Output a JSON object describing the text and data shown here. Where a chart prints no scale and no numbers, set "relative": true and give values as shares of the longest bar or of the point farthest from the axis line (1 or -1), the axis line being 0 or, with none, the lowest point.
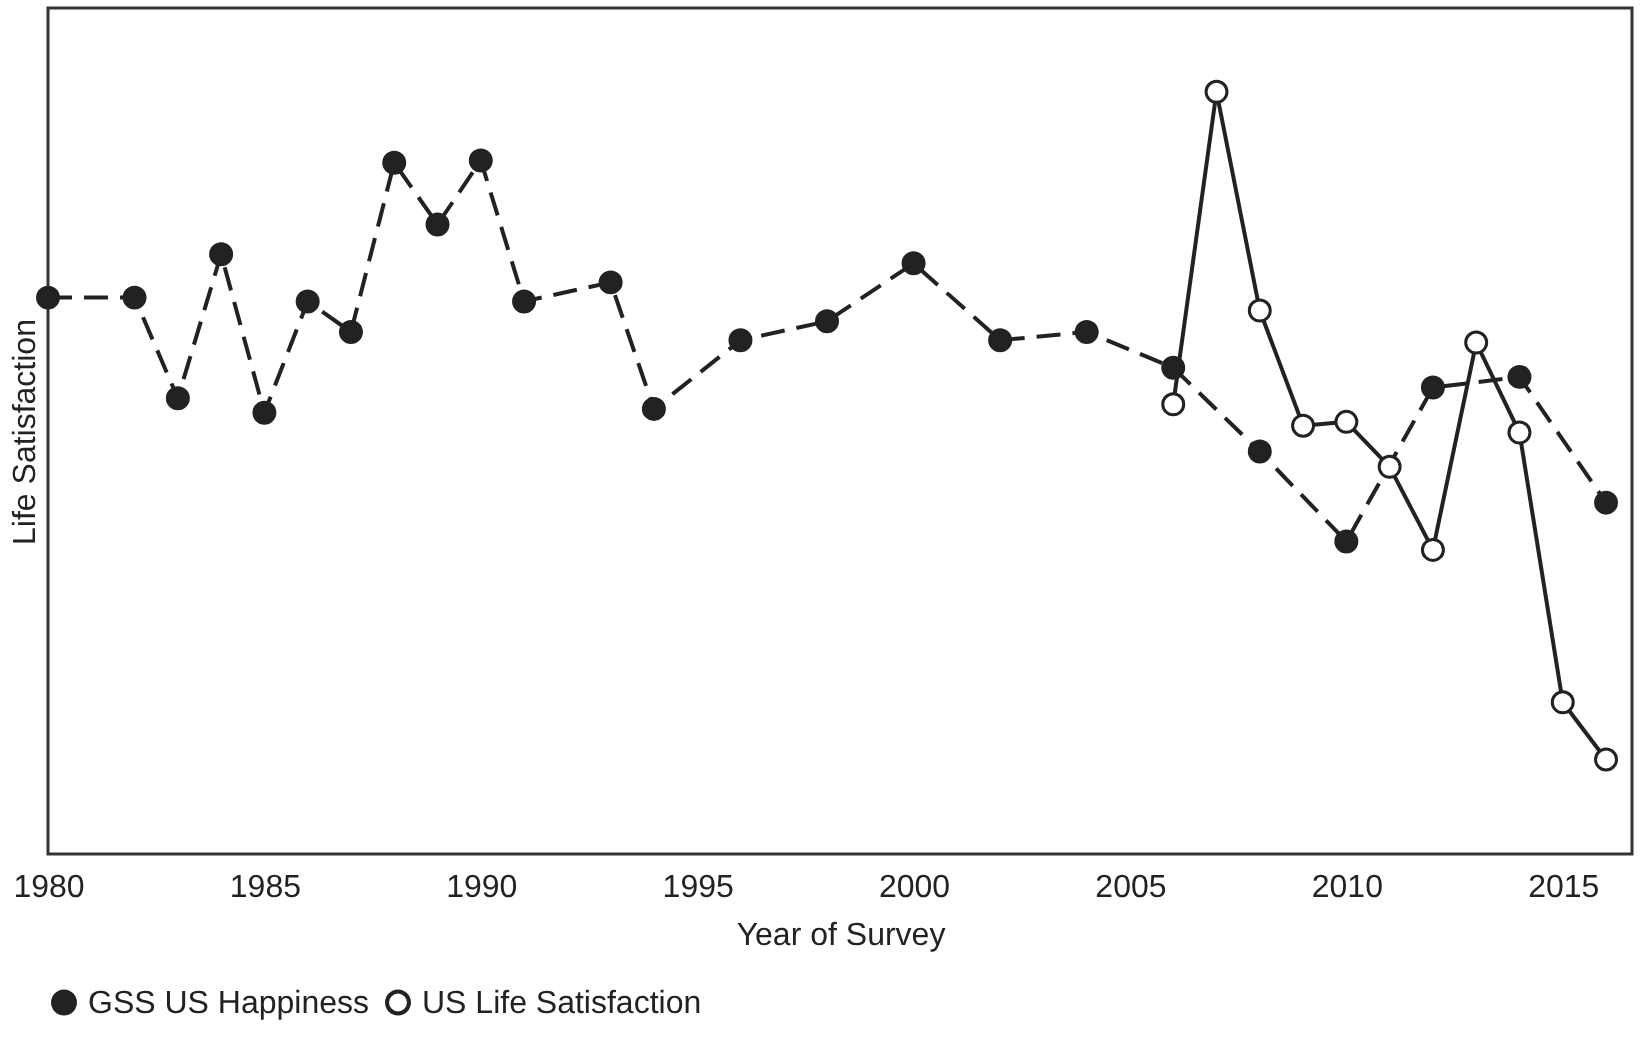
{
  "chart_data": {
    "type": "line",
    "xlabel": "Year of Survey",
    "ylabel": "Life Satisfaction",
    "relative": true,
    "xlim": [
      1980,
      2016.6
    ],
    "xticks": [
      1980,
      1985,
      1990,
      1995,
      2000,
      2005,
      2010,
      2015
    ],
    "grid": false,
    "legend": "bottom",
    "marker": "circle",
    "series": [
      {
        "name": "GSS US Happiness",
        "color": "#222222",
        "line_style": "dashed",
        "x": [
          1980,
          1982,
          1983,
          1984,
          1985,
          1986,
          1987,
          1988,
          1989,
          1990,
          1991,
          1993,
          1994,
          1996,
          1998,
          2000,
          2002,
          2004,
          2006,
          2008,
          2010,
          2012,
          2014,
          2016
        ],
        "values": [
          0.73,
          0.73,
          0.598,
          0.787,
          0.579,
          0.725,
          0.685,
          0.907,
          0.826,
          0.91,
          0.725,
          0.75,
          0.584,
          0.674,
          0.699,
          0.775,
          0.674,
          0.685,
          0.638,
          0.528,
          0.41,
          0.612,
          0.626,
          0.461
        ]
      },
      {
        "name": "US Life Satisfaction",
        "color": "#222222",
        "line_style": "solid",
        "x": [
          2006,
          2007,
          2008,
          2009,
          2010,
          2011,
          2012,
          2013,
          2014,
          2015,
          2016
        ],
        "values": [
          0.59,
          1,
          0.713,
          0.562,
          0.567,
          0.508,
          0.399,
          0.671,
          0.553,
          0.199,
          0.124
        ]
      }
    ]
  }
}
